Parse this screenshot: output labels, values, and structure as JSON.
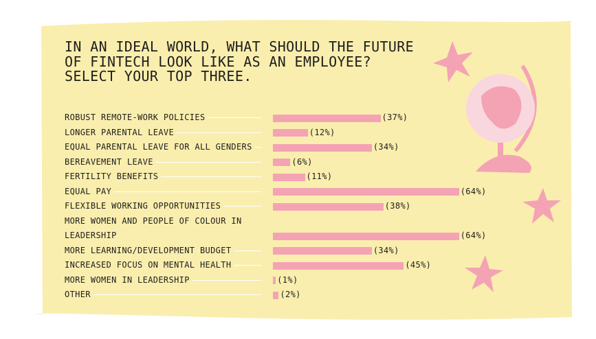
{
  "chart_data": {
    "type": "bar",
    "orientation": "horizontal",
    "title": "IN AN IDEAL WORLD, WHAT SHOULD THE FUTURE OF FINTECH LOOK LIKE AS AN EMPLOYEE? SELECT YOUR TOP THREE.",
    "categories": [
      "ROBUST REMOTE-WORK POLICIES",
      "LONGER PARENTAL LEAVE",
      "EQUAL PARENTAL LEAVE FOR ALL GENDERS",
      "BEREAVEMENT LEAVE",
      "FERTILITY BENEFITS",
      "EQUAL PAY",
      "FLEXIBLE WORKING OPPORTUNITIES",
      "MORE WOMEN AND PEOPLE OF COLOUR IN LEADERSHIP",
      "MORE LEARNING/DEVELOPMENT BUDGET",
      "INCREASED FOCUS ON MENTAL HEALTH",
      "MORE WOMEN IN LEADERSHIP",
      "OTHER"
    ],
    "values": [
      37,
      12,
      34,
      6,
      11,
      64,
      38,
      64,
      34,
      45,
      1,
      2
    ],
    "value_labels": [
      "(37%)",
      "(12%)",
      "(34%)",
      "(6%)",
      "(11%)",
      "(64%)",
      "(38%)",
      "(64%)",
      "(34%)",
      "(45%)",
      "(1%)",
      "(2%)"
    ],
    "color": "#f4a3b4"
  }
}
